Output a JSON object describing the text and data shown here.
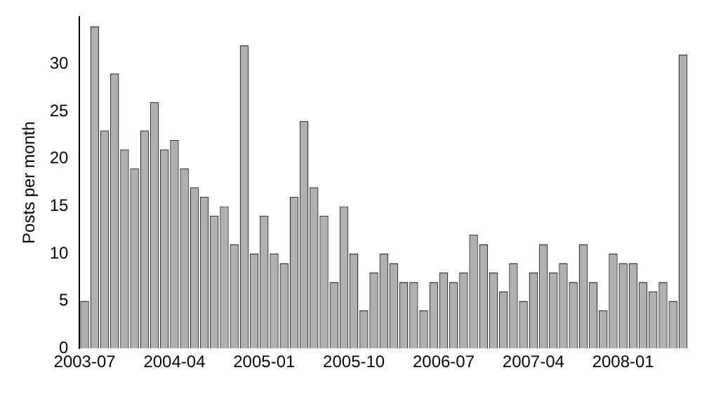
{
  "chart_data": {
    "type": "bar",
    "ylabel": "Posts per month",
    "categories": [
      "2003-07",
      null,
      null,
      null,
      null,
      null,
      null,
      null,
      null,
      "2004-04",
      null,
      null,
      null,
      null,
      null,
      null,
      null,
      null,
      "2005-01",
      null,
      null,
      null,
      null,
      null,
      null,
      null,
      null,
      "2005-10",
      null,
      null,
      null,
      null,
      null,
      null,
      null,
      null,
      "2006-07",
      null,
      null,
      null,
      null,
      null,
      null,
      null,
      null,
      "2007-04",
      null,
      null,
      null,
      null,
      null,
      null,
      null,
      null,
      "2008-01",
      null,
      null,
      null,
      null,
      null,
      null
    ],
    "values": [
      5,
      34,
      23,
      29,
      21,
      19,
      23,
      26,
      21,
      22,
      19,
      17,
      16,
      14,
      15,
      11,
      32,
      10,
      14,
      10,
      9,
      16,
      24,
      17,
      14,
      7,
      15,
      10,
      4,
      8,
      10,
      9,
      7,
      7,
      4,
      7,
      8,
      7,
      8,
      12,
      11,
      8,
      6,
      9,
      5,
      8,
      11,
      8,
      9,
      7,
      11,
      7,
      4,
      10,
      9,
      9,
      7,
      6,
      7,
      5,
      31
    ],
    "color": "#b0b0b0",
    "ylim": [
      0,
      35
    ],
    "yticks": [
      0,
      5,
      10,
      15,
      20,
      25,
      30
    ],
    "grid": false,
    "legend": false
  }
}
